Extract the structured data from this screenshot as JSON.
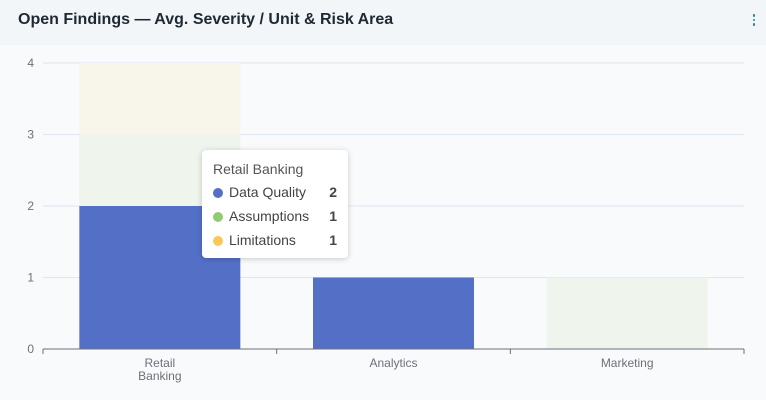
{
  "header": {
    "title": "Open Findings — Avg. Severity / Unit & Risk Area",
    "menu_icon": "more-vertical-icon"
  },
  "chart_data": {
    "type": "bar",
    "stacked": true,
    "categories": [
      "Retail Banking",
      "Analytics",
      "Marketing"
    ],
    "category_labels": [
      [
        "Retail",
        "Banking"
      ],
      [
        "Analytics"
      ],
      [
        "Marketing"
      ]
    ],
    "series": [
      {
        "name": "Data Quality",
        "values": [
          2,
          1,
          0
        ],
        "color": "#5470c6"
      },
      {
        "name": "Assumptions",
        "values": [
          1,
          0,
          1
        ],
        "color": "#91cc75"
      },
      {
        "name": "Limitations",
        "values": [
          1,
          0,
          0
        ],
        "color": "#fac858"
      }
    ],
    "faded_colors": {
      "Data Quality": "#5470c6",
      "Assumptions": "#eff4ec",
      "Limitations": "#f8f5ea"
    },
    "ylim": [
      0,
      4
    ],
    "yticks": [
      "0",
      "1",
      "2",
      "3",
      "4"
    ],
    "grid": true,
    "tooltip": {
      "title": "Retail Banking",
      "rows": [
        {
          "name": "Data Quality",
          "value": "2",
          "color": "#5470c6"
        },
        {
          "name": "Assumptions",
          "value": "1",
          "color": "#91cc75"
        },
        {
          "name": "Limitations",
          "value": "1",
          "color": "#fac858"
        }
      ]
    }
  }
}
